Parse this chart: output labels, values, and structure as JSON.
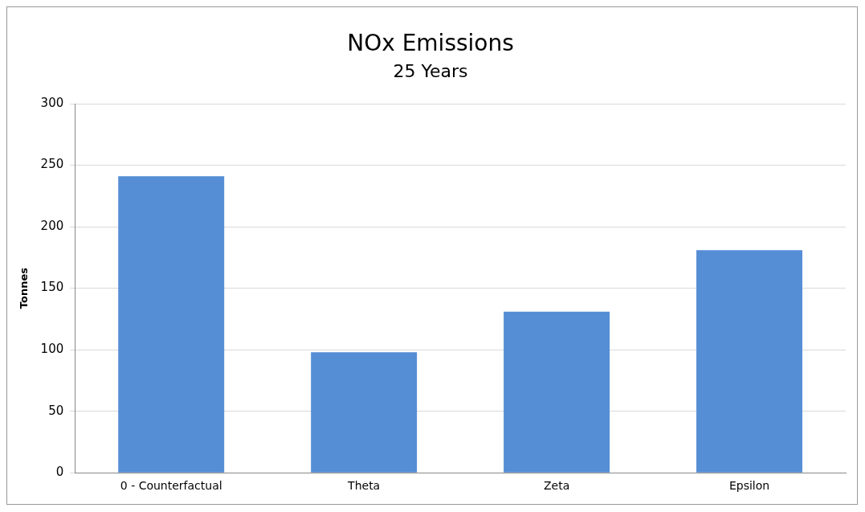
{
  "chart_data": {
    "type": "bar",
    "title": "NOx Emissions",
    "subtitle": "25 Years",
    "ylabel": "Tonnes",
    "categories": [
      "0 - Counterfactual",
      "Theta",
      "Zeta",
      "Epsilon"
    ],
    "values": [
      241,
      98,
      131,
      181
    ],
    "color": "#558ed5",
    "ylim": [
      0,
      300
    ],
    "yticks": [
      0,
      50,
      100,
      150,
      200,
      250,
      300
    ],
    "grid": "y"
  }
}
